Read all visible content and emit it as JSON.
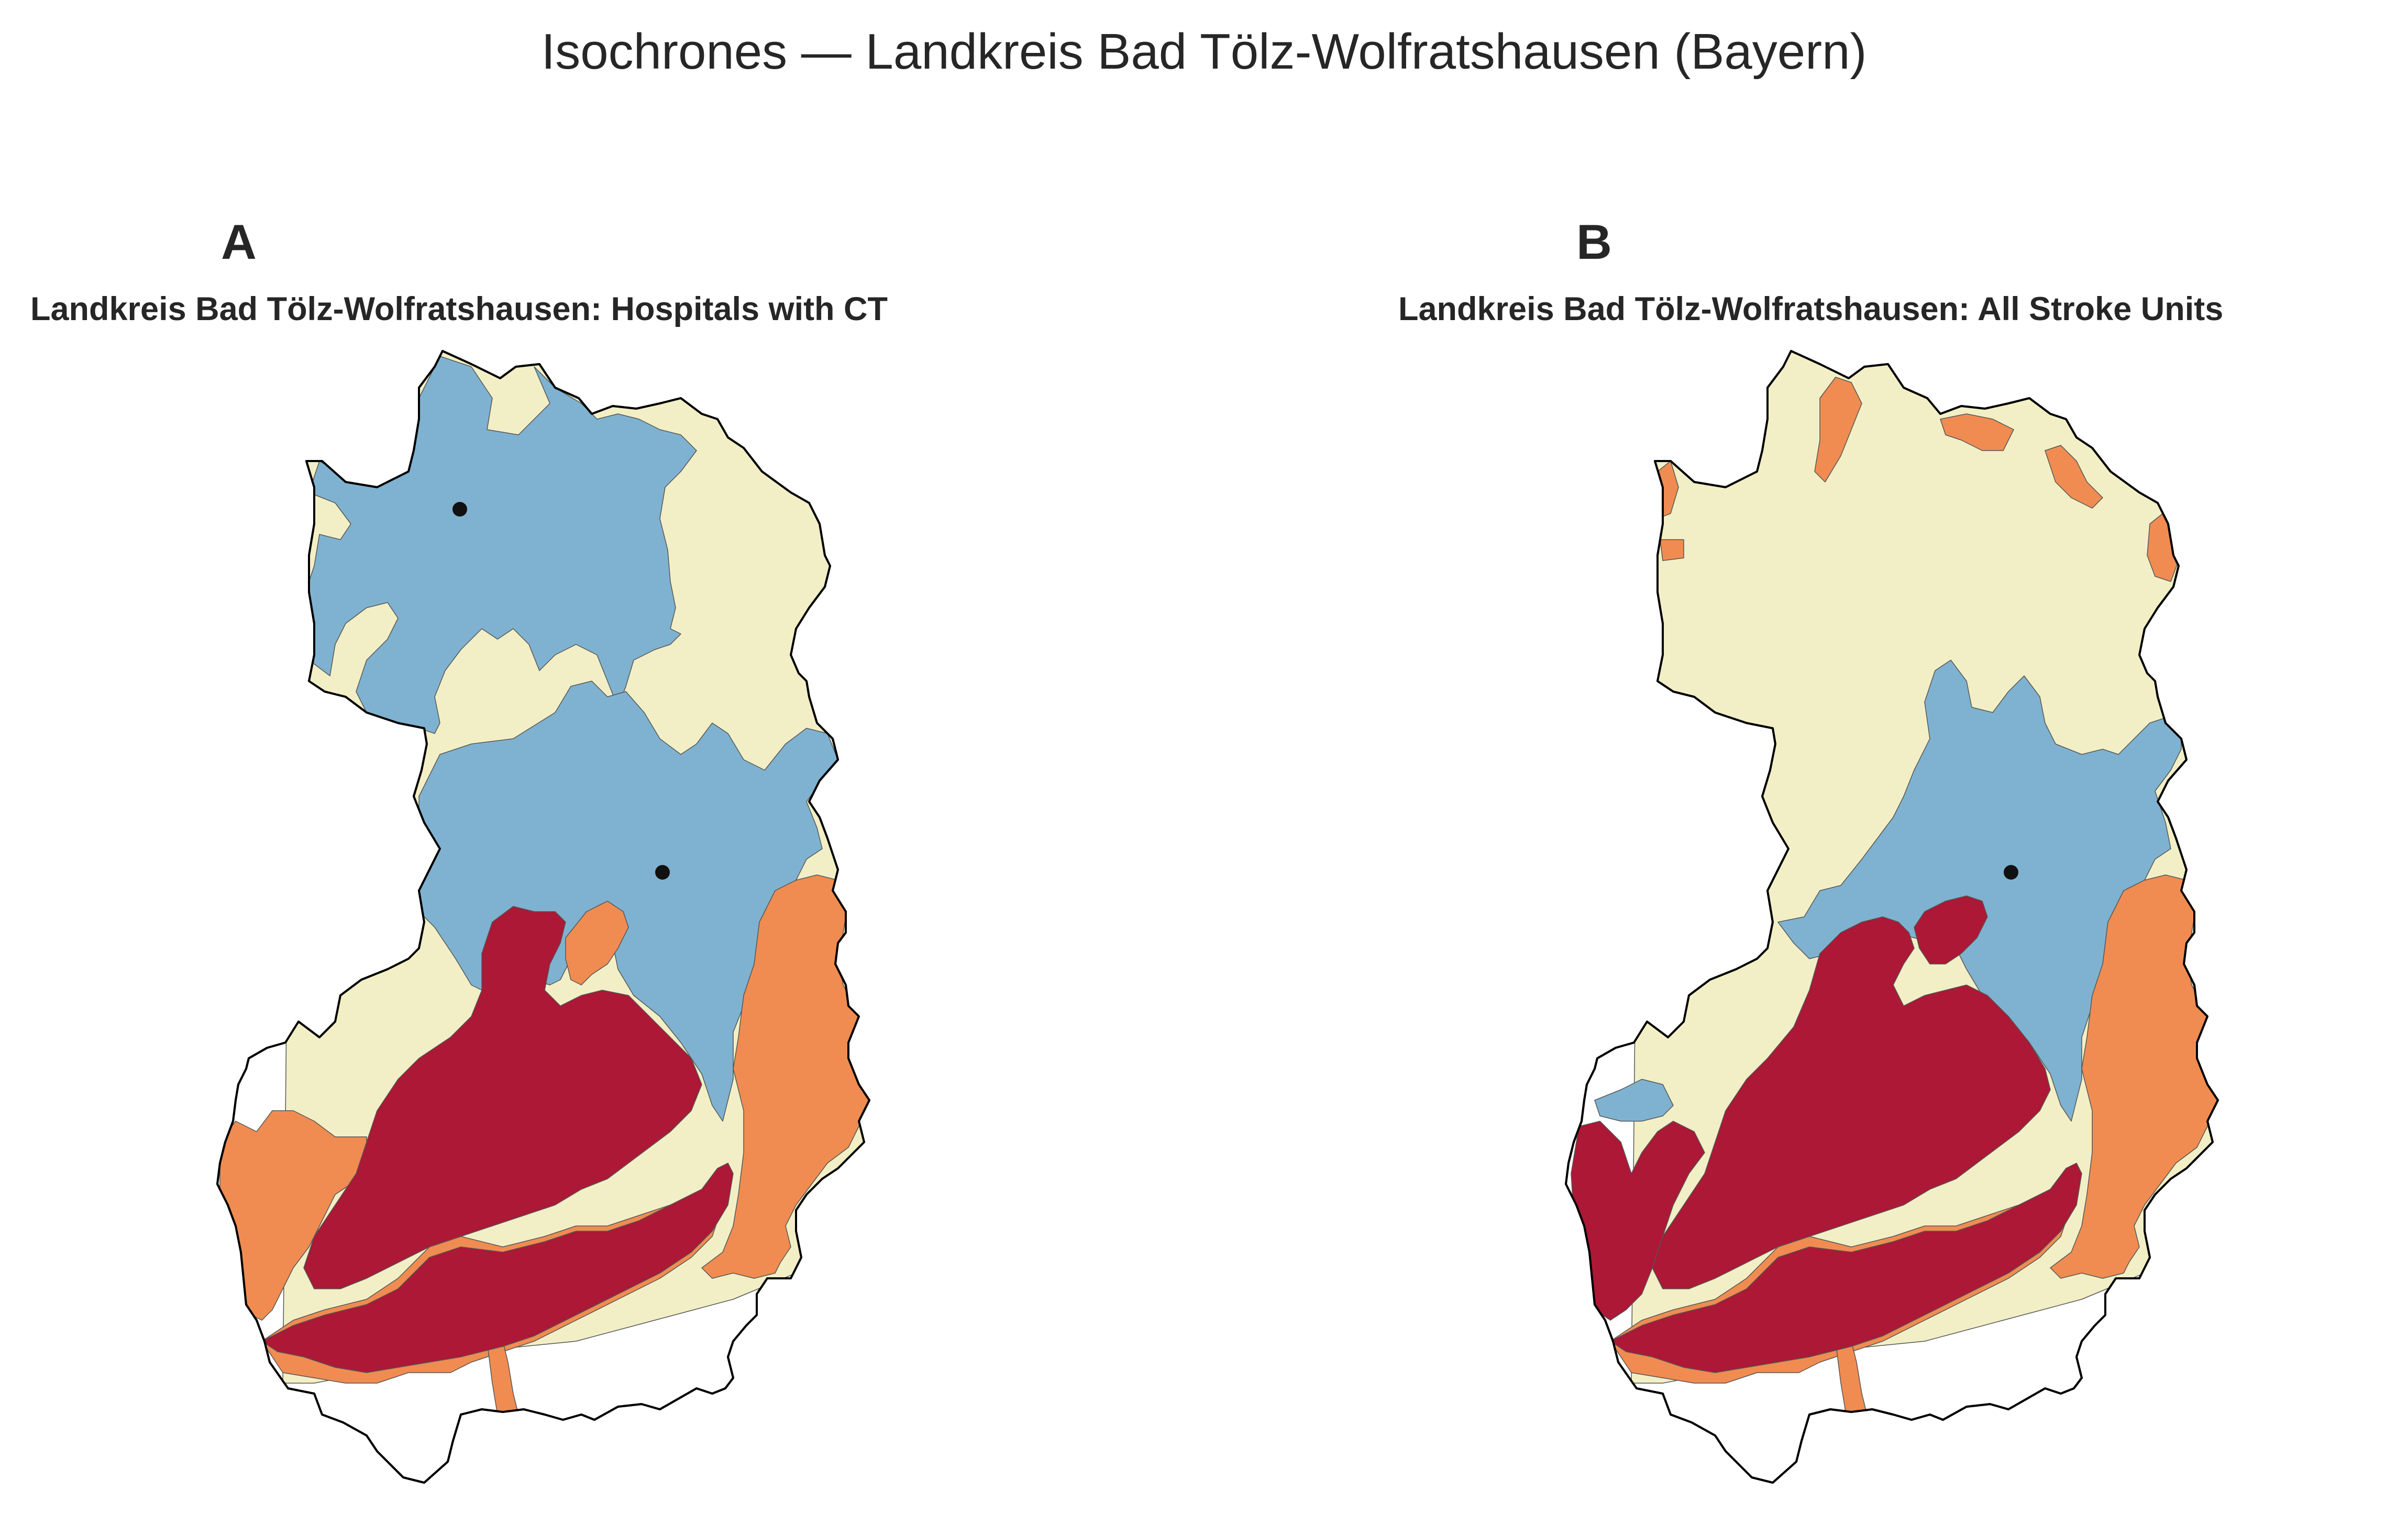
{
  "suptitle": "Isochrones — Landkreis Bad Tölz-Wolfratshausen (Bayern)",
  "colors": {
    "zone_1": "#7fb2d0",
    "zone_2": "#f2efc6",
    "zone_3": "#f08c51",
    "zone_4": "#ac1836",
    "outside": "#ffffff",
    "site": "#111111"
  },
  "panels": [
    {
      "letter": "A",
      "title": "Landkreis Bad Tölz-Wolfratshausen: Hospitals with CT",
      "facility_markers": 2
    },
    {
      "letter": "B",
      "title": "Landkreis Bad Tölz-Wolfratshausen: All Stroke Units",
      "facility_markers": 1
    }
  ]
}
